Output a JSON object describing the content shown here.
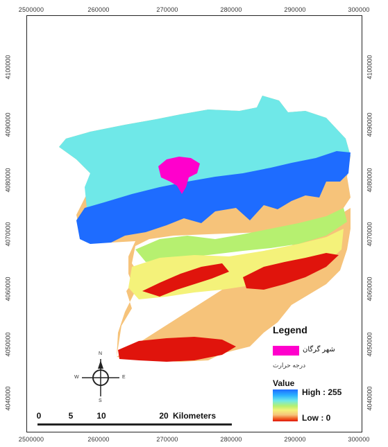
{
  "axis_ticks": {
    "top": [
      "2500000",
      "260000",
      "270000",
      "280000",
      "290000",
      "300000"
    ],
    "bottom": [
      "2500000",
      "260000",
      "270000",
      "280000",
      "290000",
      "300000"
    ],
    "left": [
      "4100000",
      "4090000",
      "4080000",
      "4070000",
      "4060000",
      "4050000",
      "4040000"
    ],
    "right": [
      "4100000",
      "4090000",
      "4080000",
      "4070000",
      "4060000",
      "4050000",
      "4040000"
    ]
  },
  "legend": {
    "title": "Legend",
    "city_label": "شهر گرگان",
    "temperature_label": "درجه حرارت",
    "value_title": "Value",
    "high_label": "High : 255",
    "low_label": "Low : 0",
    "city_color": "#ff00cc"
  },
  "scale_bar": {
    "ticks": [
      "0",
      "5",
      "10",
      "20"
    ],
    "unit": "Kilometers"
  },
  "north_arrow": {
    "icon": "compass-rose-icon",
    "n": "N",
    "s": "S",
    "e": "E",
    "w": "W"
  },
  "colors": {
    "dark_blue": "#1e6cff",
    "cyan": "#6fe8e8",
    "green": "#b6f070",
    "yellow": "#f4f27a",
    "tan": "#f6c37a",
    "red": "#e0140c"
  }
}
